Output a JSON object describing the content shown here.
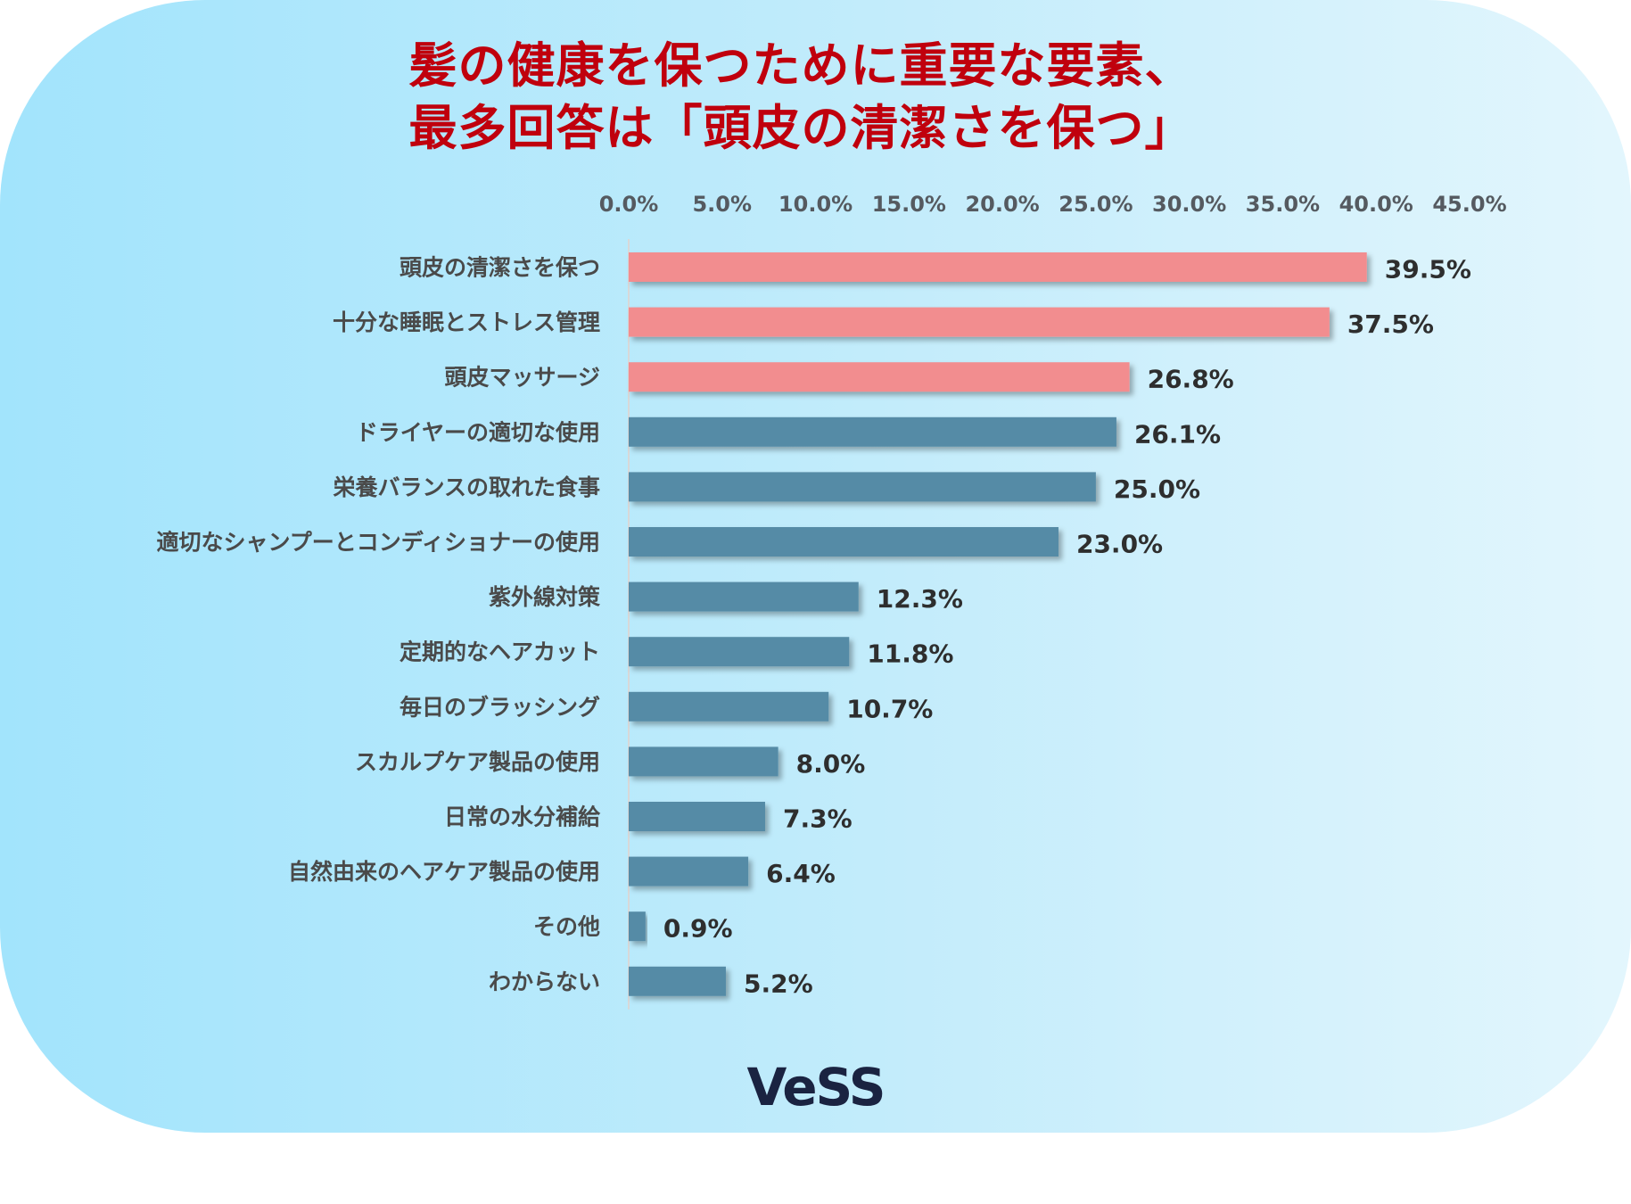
{
  "title": {
    "line1": "髪の健康を保つために重要な要素、",
    "line2": "最多回答は「頭皮の清潔さを保つ」"
  },
  "logo": "VeSS",
  "colors": {
    "highlight_bar": "#f28d8f",
    "normal_bar": "#558ba6",
    "title": "#c0000d"
  },
  "chart_data": {
    "type": "bar",
    "orientation": "horizontal",
    "xlim": [
      0,
      45
    ],
    "xticks": [
      "0.0%",
      "5.0%",
      "10.0%",
      "15.0%",
      "20.0%",
      "25.0%",
      "30.0%",
      "35.0%",
      "40.0%",
      "45.0%"
    ],
    "x_axis_position": "top",
    "grid": false,
    "categories": [
      "頭皮の清潔さを保つ",
      "十分な睡眠とストレス管理",
      "頭皮マッサージ",
      "ドライヤーの適切な使用",
      "栄養バランスの取れた食事",
      "適切なシャンプーとコンディショナーの使用",
      "紫外線対策",
      "定期的なヘアカット",
      "毎日のブラッシング",
      "スカルプケア製品の使用",
      "日常の水分補給",
      "自然由来のヘアケア製品の使用",
      "その他",
      "わからない"
    ],
    "values": [
      39.5,
      37.5,
      26.8,
      26.1,
      25.0,
      23.0,
      12.3,
      11.8,
      10.7,
      8.0,
      7.3,
      6.4,
      0.9,
      5.2
    ],
    "value_labels": [
      "39.5%",
      "37.5%",
      "26.8%",
      "26.1%",
      "25.0%",
      "23.0%",
      "12.3%",
      "11.8%",
      "10.7%",
      "8.0%",
      "7.3%",
      "6.4%",
      "0.9%",
      "5.2%"
    ],
    "highlighted": [
      true,
      true,
      true,
      false,
      false,
      false,
      false,
      false,
      false,
      false,
      false,
      false,
      false,
      false
    ]
  }
}
